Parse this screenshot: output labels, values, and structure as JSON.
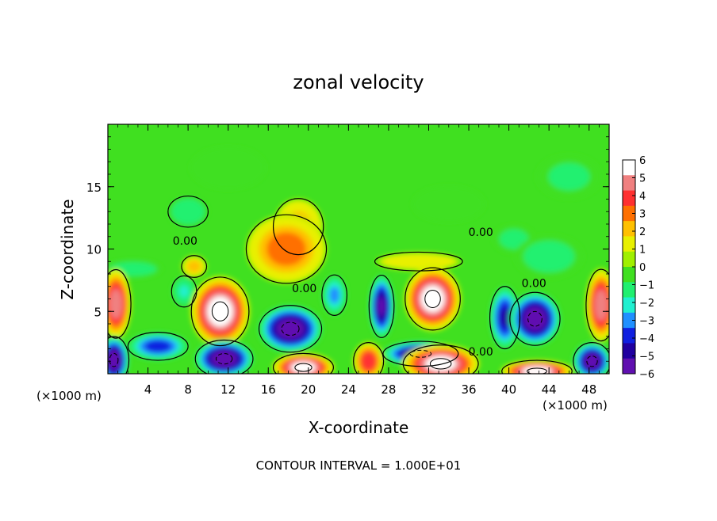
{
  "chart_data": {
    "type": "heatmap",
    "title": "zonal velocity",
    "xlabel": "X-coordinate",
    "ylabel": "Z-coordinate",
    "x_unit_label": "(×1000 m)",
    "x_unit_label_right": "(×1000 m)",
    "footer": "CONTOUR INTERVAL = 1.000E+01",
    "xlim": [
      0,
      50
    ],
    "ylim": [
      0,
      20
    ],
    "x_ticks": [
      4,
      8,
      12,
      16,
      20,
      24,
      28,
      32,
      36,
      40,
      44,
      48
    ],
    "x_tick_labels": [
      "4",
      "8",
      "12",
      "16",
      "20",
      "24",
      "28",
      "32",
      "36",
      "40",
      "44",
      "48"
    ],
    "y_ticks": [
      5,
      10,
      15
    ],
    "y_tick_labels": [
      "5",
      "10",
      "15"
    ],
    "colorbar": {
      "min": -6,
      "max": 6,
      "tick_values": [
        6,
        5,
        4,
        3,
        2,
        1,
        0,
        -1,
        -2,
        -3,
        -4,
        -5,
        -6
      ],
      "tick_labels": [
        "6",
        "5",
        "4",
        "3",
        "2",
        "1",
        "0",
        "−1",
        "−2",
        "−3",
        "−4",
        "−5",
        "−6"
      ],
      "colors": [
        "#ffffff",
        "#f08080",
        "#ff3030",
        "#ff7000",
        "#ffc000",
        "#e8f000",
        "#a0f000",
        "#40e020",
        "#20f070",
        "#20f0d0",
        "#2090ff",
        "#1020e0",
        "#2000a0",
        "#6010b0"
      ]
    },
    "contour_labels": [
      {
        "text": "0.00",
        "x": 7.7,
        "y": 10.6
      },
      {
        "text": "0.00",
        "x": 19.6,
        "y": 6.8
      },
      {
        "text": "0.00",
        "x": 37.2,
        "y": 11.3
      },
      {
        "text": "0.00",
        "x": 42.5,
        "y": 7.2
      },
      {
        "text": "0.00",
        "x": 37.2,
        "y": 1.7
      }
    ],
    "features": [
      {
        "sign": "positive",
        "strength": 6.5,
        "x": 11.2,
        "y": 5.0,
        "sx": 2.3,
        "sy": 2.2
      },
      {
        "sign": "positive",
        "strength": 6.4,
        "x": 32.4,
        "y": 6.0,
        "sx": 2.2,
        "sy": 2.0
      },
      {
        "sign": "positive",
        "strength": 3.8,
        "x": 17.8,
        "y": 10.0,
        "sx": 3.2,
        "sy": 2.2
      },
      {
        "sign": "positive",
        "strength": 3.0,
        "x": 19.0,
        "y": 11.8,
        "sx": 2.0,
        "sy": 1.8
      },
      {
        "sign": "positive",
        "strength": 5.5,
        "x": 0.8,
        "y": 5.6,
        "sx": 1.2,
        "sy": 2.2
      },
      {
        "sign": "positive",
        "strength": 5.5,
        "x": 49.2,
        "y": 5.5,
        "sx": 1.2,
        "sy": 2.3
      },
      {
        "sign": "positive",
        "strength": 6.3,
        "x": 19.5,
        "y": 0.5,
        "sx": 2.4,
        "sy": 0.9
      },
      {
        "sign": "positive",
        "strength": 6.3,
        "x": 33.2,
        "y": 0.8,
        "sx": 3.0,
        "sy": 1.2
      },
      {
        "sign": "positive",
        "strength": 6.4,
        "x": 42.8,
        "y": 0.2,
        "sx": 2.8,
        "sy": 0.7
      },
      {
        "sign": "positive",
        "strength": 4.8,
        "x": 26.0,
        "y": 1.0,
        "sx": 1.2,
        "sy": 1.2
      },
      {
        "sign": "positive",
        "strength": 3.0,
        "x": 8.6,
        "y": 8.6,
        "sx": 1.0,
        "sy": 0.7
      },
      {
        "sign": "positive",
        "strength": 2.2,
        "x": 31.0,
        "y": 9.0,
        "sx": 3.5,
        "sy": 0.6
      },
      {
        "sign": "negative",
        "strength": 6.4,
        "x": 18.2,
        "y": 3.6,
        "sx": 2.5,
        "sy": 1.5
      },
      {
        "sign": "negative",
        "strength": 5.8,
        "x": 27.3,
        "y": 5.4,
        "sx": 1.0,
        "sy": 2.0
      },
      {
        "sign": "negative",
        "strength": 6.5,
        "x": 42.6,
        "y": 4.4,
        "sx": 2.0,
        "sy": 1.7
      },
      {
        "sign": "negative",
        "strength": 5.0,
        "x": 39.6,
        "y": 4.5,
        "sx": 1.2,
        "sy": 2.0
      },
      {
        "sign": "negative",
        "strength": 6.5,
        "x": 11.6,
        "y": 1.2,
        "sx": 2.3,
        "sy": 1.2
      },
      {
        "sign": "negative",
        "strength": 6.4,
        "x": 0.6,
        "y": 1.1,
        "sx": 1.2,
        "sy": 1.5
      },
      {
        "sign": "negative",
        "strength": 6.2,
        "x": 31.2,
        "y": 1.6,
        "sx": 3.0,
        "sy": 0.8
      },
      {
        "sign": "negative",
        "strength": 6.2,
        "x": 48.3,
        "y": 1.0,
        "sx": 1.5,
        "sy": 1.2
      },
      {
        "sign": "negative",
        "strength": 4.6,
        "x": 5.0,
        "y": 2.2,
        "sx": 2.4,
        "sy": 0.9
      },
      {
        "sign": "negative",
        "strength": 3.5,
        "x": 22.6,
        "y": 6.3,
        "sx": 1.0,
        "sy": 1.3
      },
      {
        "sign": "negative",
        "strength": 2.5,
        "x": 7.6,
        "y": 6.6,
        "sx": 1.0,
        "sy": 1.0
      },
      {
        "sign": "negative",
        "strength": 2.2,
        "x": 8.0,
        "y": 13.0,
        "sx": 1.6,
        "sy": 1.0
      },
      {
        "sign": "negative",
        "strength": 1.8,
        "x": 2.5,
        "y": 8.4,
        "sx": 2.4,
        "sy": 0.6
      },
      {
        "sign": "negative",
        "strength": 1.3,
        "x": 44.0,
        "y": 9.4,
        "sx": 3.0,
        "sy": 1.5
      },
      {
        "sign": "negative",
        "strength": 1.0,
        "x": 46.0,
        "y": 15.8,
        "sx": 3.0,
        "sy": 1.6
      },
      {
        "sign": "negative",
        "strength": 0.8,
        "x": 34.0,
        "y": 13.6,
        "sx": 3.5,
        "sy": 1.4
      },
      {
        "sign": "negative",
        "strength": 0.6,
        "x": 12.0,
        "y": 16.5,
        "sx": 4.0,
        "sy": 1.8
      },
      {
        "sign": "negative",
        "strength": 1.2,
        "x": 40.5,
        "y": 10.8,
        "sx": 1.8,
        "sy": 1.0
      }
    ]
  }
}
